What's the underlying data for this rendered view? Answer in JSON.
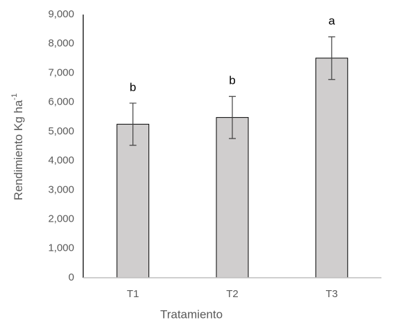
{
  "chart_data": {
    "type": "bar",
    "categories": [
      "T1",
      "T2",
      "T3"
    ],
    "values": [
      5250,
      5480,
      7510
    ],
    "errors": [
      720,
      720,
      730
    ],
    "letters": [
      "b",
      "b",
      "a"
    ],
    "color": "#d0cece",
    "x_label": "Tratamiento",
    "y_label": {
      "text": "Rendimiento Kg ha",
      "superscript": "-1"
    },
    "ylim": [
      0,
      9000
    ],
    "yticks": [
      0,
      {
        "value": 1000,
        "label": "1,000"
      },
      {
        "value": 2000,
        "label": "2,000"
      },
      {
        "value": 3000,
        "label": "3,000"
      },
      {
        "value": 4000,
        "label": "4,000"
      },
      {
        "value": 5000,
        "label": "5,000"
      },
      {
        "value": 6000,
        "label": "6,000"
      },
      {
        "value": 7000,
        "label": "7,000"
      },
      {
        "value": 8000,
        "label": "8,000"
      },
      {
        "value": 9000,
        "label": "9,000"
      }
    ],
    "grid": false
  }
}
